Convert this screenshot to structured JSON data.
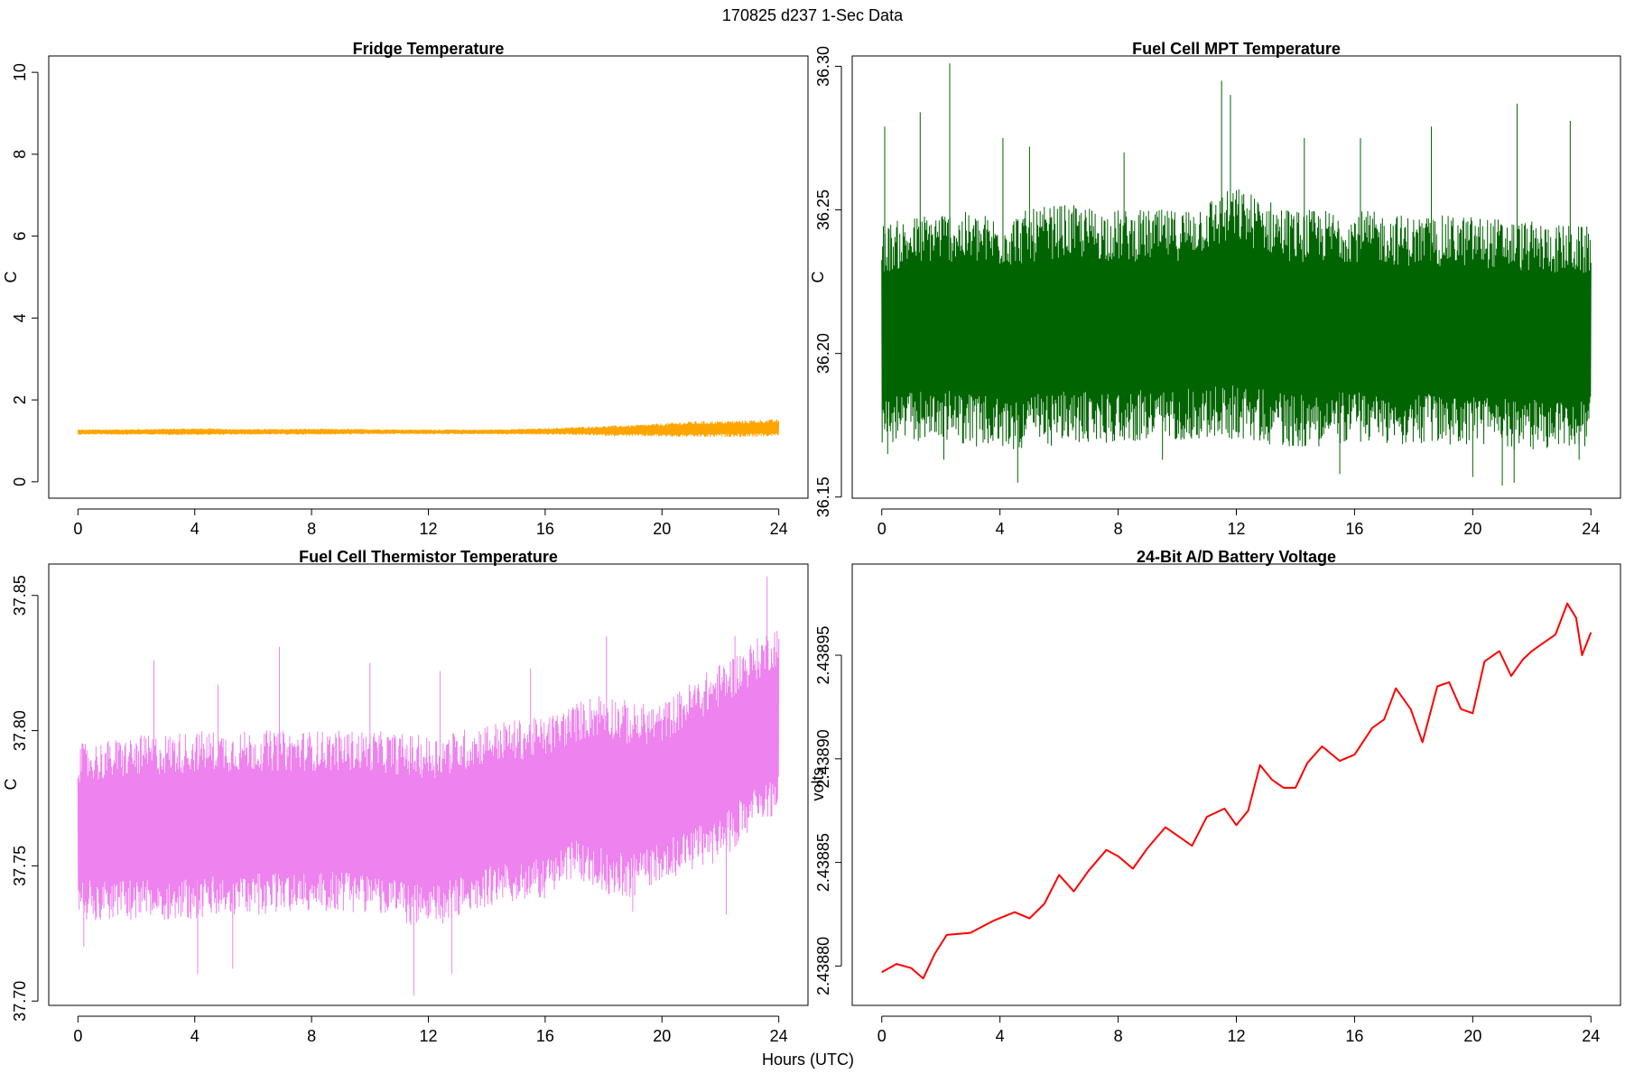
{
  "figure": {
    "suptitle": "170825   d237   1-Sec Data",
    "xlabel": "Hours (UTC)"
  },
  "chart_data": [
    {
      "type": "line",
      "title": "Fridge Temperature",
      "xlabel": "",
      "ylabel": "C",
      "xlim": [
        -1,
        25
      ],
      "ylim": [
        -0.4,
        10.4
      ],
      "xticks": [
        0,
        4,
        8,
        12,
        16,
        20,
        24
      ],
      "yticks": [
        0,
        2,
        4,
        6,
        8,
        10
      ],
      "ytick_labels": [
        "0",
        "2",
        "4",
        "6",
        "8",
        "10"
      ],
      "color": "#FFA500",
      "series": [
        {
          "style": "band",
          "x": [
            0,
            2,
            4,
            6,
            8,
            10,
            12,
            14,
            16,
            17,
            18,
            19,
            20,
            21,
            22,
            23,
            24
          ],
          "low": [
            1.16,
            1.16,
            1.15,
            1.16,
            1.16,
            1.17,
            1.17,
            1.17,
            1.16,
            1.15,
            1.13,
            1.12,
            1.11,
            1.09,
            1.1,
            1.1,
            1.12
          ],
          "high": [
            1.27,
            1.28,
            1.3,
            1.28,
            1.29,
            1.28,
            1.27,
            1.27,
            1.3,
            1.33,
            1.36,
            1.38,
            1.42,
            1.47,
            1.48,
            1.5,
            1.52
          ]
        }
      ]
    },
    {
      "type": "line",
      "title": "Fuel Cell MPT Temperature",
      "xlabel": "",
      "ylabel": "C",
      "xlim": [
        -1,
        25
      ],
      "ylim": [
        36.1496,
        36.3036
      ],
      "xticks": [
        0,
        4,
        8,
        12,
        16,
        20,
        24
      ],
      "yticks": [
        36.15,
        36.2,
        36.25,
        36.3
      ],
      "ytick_labels": [
        "36.15",
        "36.20",
        "36.25",
        "36.30"
      ],
      "color": "#006400",
      "series": [
        {
          "style": "band",
          "x": [
            0,
            2,
            4,
            6,
            8,
            10,
            12,
            14,
            16,
            18,
            20,
            22,
            24
          ],
          "low": [
            36.168,
            36.17,
            36.166,
            36.168,
            36.169,
            36.17,
            36.17,
            36.167,
            36.169,
            36.168,
            36.168,
            36.166,
            36.168
          ],
          "high": [
            36.245,
            36.25,
            36.248,
            36.252,
            36.25,
            36.25,
            36.258,
            36.25,
            36.25,
            36.248,
            36.248,
            36.246,
            36.244
          ]
        }
      ],
      "spikes_high": [
        [
          0.1,
          36.279
        ],
        [
          1.3,
          36.284
        ],
        [
          2.3,
          36.301
        ],
        [
          4.1,
          36.275
        ],
        [
          5.0,
          36.272
        ],
        [
          8.2,
          36.27
        ],
        [
          11.5,
          36.295
        ],
        [
          11.8,
          36.29
        ],
        [
          14.3,
          36.275
        ],
        [
          16.2,
          36.275
        ],
        [
          18.6,
          36.279
        ],
        [
          21.5,
          36.287
        ],
        [
          23.3,
          36.281
        ]
      ],
      "spikes_low": [
        [
          0.2,
          36.165
        ],
        [
          2.1,
          36.163
        ],
        [
          4.6,
          36.155
        ],
        [
          9.5,
          36.163
        ],
        [
          15.5,
          36.158
        ],
        [
          20.0,
          36.157
        ],
        [
          21.0,
          36.154
        ],
        [
          21.4,
          36.155
        ],
        [
          23.6,
          36.163
        ]
      ]
    },
    {
      "type": "line",
      "title": "Fuel Cell Thermistor Temperature",
      "xlabel": "",
      "ylabel": "C",
      "xlim": [
        -1,
        25
      ],
      "ylim": [
        37.6984,
        37.8616
      ],
      "xticks": [
        0,
        4,
        8,
        12,
        16,
        20,
        24
      ],
      "yticks": [
        37.7,
        37.75,
        37.8,
        37.85
      ],
      "ytick_labels": [
        "37.70",
        "37.75",
        "37.80",
        "37.85"
      ],
      "color": "#EE82EE",
      "series": [
        {
          "style": "band",
          "x": [
            0,
            2,
            4,
            6,
            8,
            10,
            12,
            13,
            14,
            16,
            17,
            18,
            19,
            20,
            21,
            22,
            23,
            24
          ],
          "low": [
            37.73,
            37.73,
            37.73,
            37.732,
            37.733,
            37.733,
            37.726,
            37.73,
            37.735,
            37.738,
            37.745,
            37.74,
            37.738,
            37.745,
            37.748,
            37.752,
            37.762,
            37.77
          ],
          "high": [
            37.795,
            37.798,
            37.8,
            37.8,
            37.8,
            37.8,
            37.798,
            37.8,
            37.803,
            37.805,
            37.81,
            37.815,
            37.81,
            37.81,
            37.818,
            37.825,
            37.832,
            37.84
          ]
        }
      ],
      "spikes_high": [
        [
          2.6,
          37.826
        ],
        [
          4.8,
          37.817
        ],
        [
          6.9,
          37.831
        ],
        [
          10.0,
          37.825
        ],
        [
          12.4,
          37.822
        ],
        [
          15.5,
          37.823
        ],
        [
          18.1,
          37.835
        ],
        [
          22.5,
          37.835
        ],
        [
          23.6,
          37.857
        ]
      ],
      "spikes_low": [
        [
          0.2,
          37.72
        ],
        [
          4.1,
          37.71
        ],
        [
          5.3,
          37.712
        ],
        [
          11.5,
          37.702
        ],
        [
          12.8,
          37.71
        ],
        [
          19.0,
          37.733
        ],
        [
          22.2,
          37.732
        ]
      ]
    },
    {
      "type": "line",
      "title": "24-Bit A/D Battery Voltage",
      "xlabel": "",
      "ylabel": "volts",
      "xlim": [
        -1,
        25
      ],
      "ylim": [
        2.438781,
        2.438994
      ],
      "xticks": [
        0,
        4,
        8,
        12,
        16,
        20,
        24
      ],
      "yticks": [
        2.4388,
        2.43885,
        2.4389,
        2.43895
      ],
      "ytick_labels": [
        "2.43880",
        "2.43885",
        "2.43890",
        "2.43895"
      ],
      "color": "#FF0000",
      "series": [
        {
          "style": "line",
          "x": [
            0,
            0.5,
            1.0,
            1.4,
            1.8,
            2.2,
            3.0,
            3.8,
            4.5,
            5.0,
            5.5,
            6.0,
            6.5,
            7.0,
            7.6,
            8.0,
            8.5,
            9.0,
            9.6,
            10.0,
            10.5,
            11.0,
            11.6,
            12.0,
            12.4,
            12.8,
            13.2,
            13.6,
            14.0,
            14.4,
            14.9,
            15.5,
            16.0,
            16.6,
            17.0,
            17.4,
            17.9,
            18.3,
            18.8,
            19.2,
            19.6,
            20.0,
            20.4,
            20.9,
            21.3,
            21.7,
            22.0,
            22.4,
            22.8,
            23.2,
            23.5,
            23.7,
            24.0
          ],
          "values": [
            2.438797,
            2.438801,
            2.438799,
            2.438794,
            2.438806,
            2.438815,
            2.438816,
            2.438822,
            2.438826,
            2.438823,
            2.43883,
            2.438844,
            2.438836,
            2.438846,
            2.438856,
            2.438853,
            2.438847,
            2.438857,
            2.438867,
            2.438863,
            2.438858,
            2.438872,
            2.438876,
            2.438868,
            2.438875,
            2.438897,
            2.43889,
            2.438886,
            2.438886,
            2.438898,
            2.438906,
            2.438899,
            2.438902,
            2.438915,
            2.438919,
            2.438934,
            2.438924,
            2.438908,
            2.438935,
            2.438937,
            2.438924,
            2.438922,
            2.438947,
            2.438952,
            2.43894,
            2.438948,
            2.438952,
            2.438956,
            2.43896,
            2.438975,
            2.438968,
            2.43895,
            2.438961
          ]
        }
      ]
    }
  ]
}
